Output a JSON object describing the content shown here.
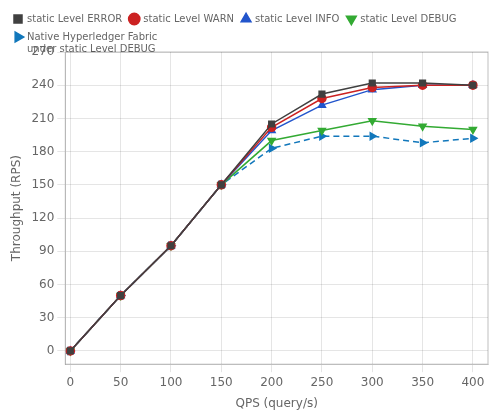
{
  "chart_data": {
    "type": "line",
    "xlabel": "QPS (query/s)",
    "ylabel": "Throughput (RPS)",
    "x": [
      0,
      50,
      100,
      150,
      200,
      250,
      300,
      350,
      400
    ],
    "series": [
      {
        "name": "static Level ERROR",
        "color": "#404040",
        "marker": "square",
        "line_style": "solid",
        "values": [
          0,
          50,
          95,
          150,
          205,
          232,
          242,
          242,
          240
        ]
      },
      {
        "name": "static Level WARN",
        "color": "#cc2222",
        "marker": "circle",
        "line_style": "solid",
        "values": [
          0,
          50,
          95,
          150,
          202,
          228,
          238,
          240,
          240
        ]
      },
      {
        "name": "static Level INFO",
        "color": "#2255cc",
        "marker": "triangle-up",
        "line_style": "solid",
        "values": [
          0,
          50,
          95,
          150,
          199,
          222,
          236,
          240,
          240
        ]
      },
      {
        "name": "static Level DEBUG",
        "color": "#33aa33",
        "marker": "triangle-down",
        "line_style": "solid",
        "values": [
          0,
          50,
          95,
          150,
          190,
          199,
          208,
          203,
          200
        ]
      },
      {
        "name": "Native Hyperledger Fabric\nunder static Level DEBUG",
        "color": "#1177bb",
        "marker": "triangle-right",
        "line_style": "dashed",
        "values": [
          0,
          50,
          95,
          150,
          183,
          194,
          194,
          188,
          192
        ]
      }
    ],
    "xlim": [
      -5,
      415
    ],
    "ylim": [
      -12,
      270
    ],
    "xticks": [
      0,
      50,
      100,
      150,
      200,
      250,
      300,
      350,
      400
    ],
    "yticks": [
      0,
      30,
      60,
      90,
      120,
      150,
      180,
      210,
      240,
      270
    ],
    "grid": true,
    "legend": "upper left"
  }
}
